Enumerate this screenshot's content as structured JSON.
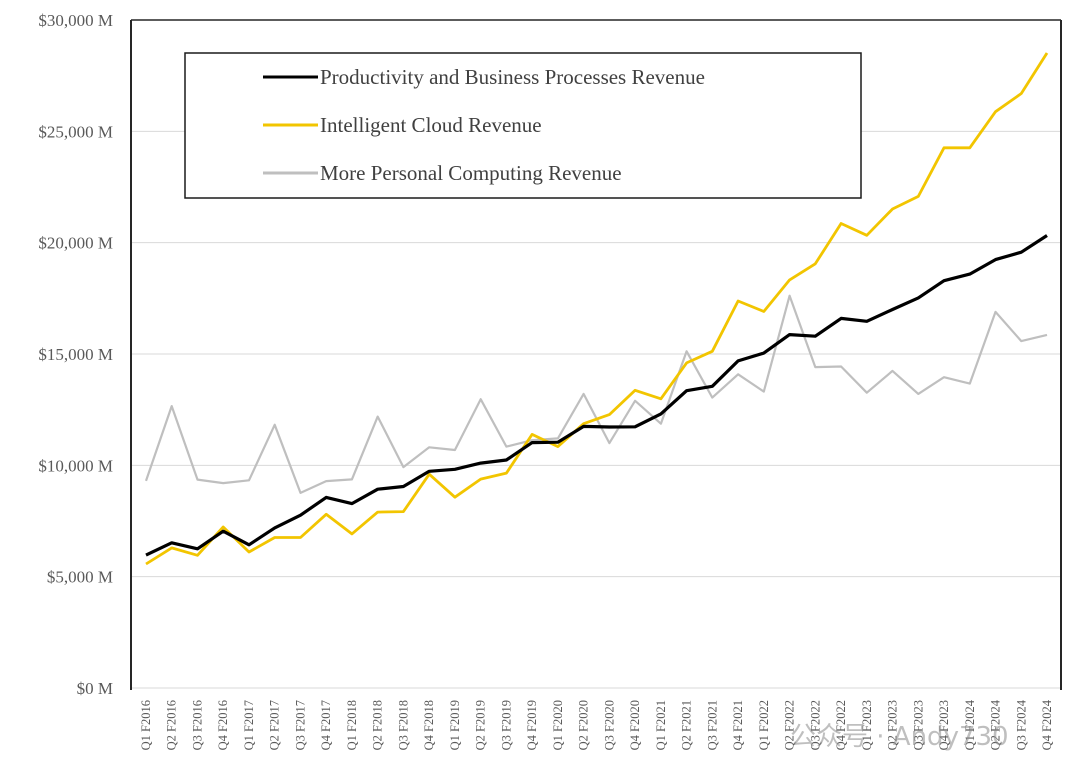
{
  "chart_data": {
    "type": "line",
    "title": "",
    "xlabel": "",
    "ylabel": "",
    "ylim": [
      0,
      30000
    ],
    "y_ticks": [
      0,
      5000,
      10000,
      15000,
      20000,
      25000,
      30000
    ],
    "y_tick_labels": [
      "$0 M",
      "$5,000 M",
      "$10,000 M",
      "$15,000 M",
      "$20,000 M",
      "$25,000 M",
      "$30,000 M"
    ],
    "grid": "horizontal",
    "legend_position": "top-left-inside",
    "categories": [
      "Q1 F2016",
      "Q2 F2016",
      "Q3 F2016",
      "Q4 F2016",
      "Q1 F2017",
      "Q2 F2017",
      "Q3 F2017",
      "Q4 F2017",
      "Q1 F2018",
      "Q2 F2018",
      "Q3 F2018",
      "Q4 F2018",
      "Q1 F2019",
      "Q2 F2019",
      "Q3 F2019",
      "Q4 F2019",
      "Q1 F2020",
      "Q2 F2020",
      "Q3 F2020",
      "Q4 F2020",
      "Q1 F2021",
      "Q2 F2021",
      "Q3 F2021",
      "Q4 F2021",
      "Q1 F2022",
      "Q2 F2022",
      "Q3 F2022",
      "Q4 F2022",
      "Q1 F2023",
      "Q2 F2023",
      "Q3 F2023",
      "Q4 F2023",
      "Q1 F2024",
      "Q2 F2024",
      "Q3 F2024",
      "Q4 F2024"
    ],
    "series": [
      {
        "name": "Productivity and Business Processes Revenue",
        "color": "#000000",
        "values": [
          5970,
          6520,
          6250,
          7040,
          6430,
          7190,
          7760,
          8560,
          8280,
          8930,
          9050,
          9730,
          9820,
          10100,
          10240,
          11020,
          11040,
          11750,
          11720,
          11730,
          12310,
          13350,
          13550,
          14690,
          15040,
          15870,
          15800,
          16600,
          16470,
          17000,
          17520,
          18290,
          18590,
          19240,
          19570,
          20320
        ]
      },
      {
        "name": "Intelligent Cloud Revenue",
        "color": "#f2c500",
        "values": [
          5570,
          6290,
          5960,
          7230,
          6110,
          6760,
          6760,
          7800,
          6920,
          7900,
          7920,
          9600,
          8570,
          9380,
          9650,
          11390,
          10840,
          11870,
          12280,
          13370,
          12990,
          14600,
          15120,
          17380,
          16910,
          18330,
          19050,
          20860,
          20330,
          21510,
          22080,
          24260,
          24260,
          25880,
          26700,
          28520
        ]
      },
      {
        "name": "More Personal Computing Revenue",
        "color": "#bfbfbf",
        "values": [
          9300,
          12660,
          9360,
          9200,
          9330,
          11820,
          8760,
          9290,
          9370,
          12190,
          9920,
          10810,
          10690,
          12970,
          10840,
          11130,
          11210,
          13210,
          11000,
          12900,
          11870,
          15120,
          13040,
          14090,
          13310,
          17620,
          14410,
          14440,
          13260,
          14240,
          13210,
          13960,
          13670,
          16890,
          15580,
          15860
        ]
      }
    ]
  },
  "watermark": {
    "text": "公众号 · Andy730"
  }
}
